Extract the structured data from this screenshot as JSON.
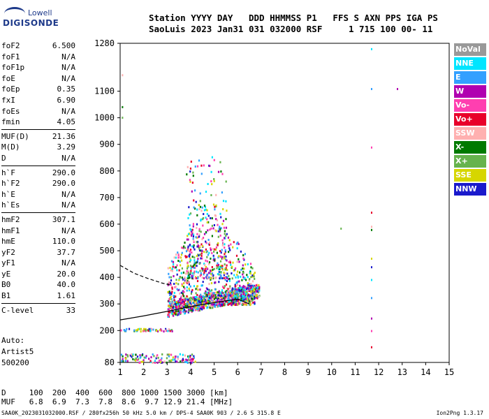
{
  "logo": {
    "line1": "Lowell",
    "line2": "DIGISONDE"
  },
  "header": {
    "line1": "Station YYYY DAY   DDD HHMMSS P1   FFS S AXN PPS IGA PS",
    "line2": "SaoLuis 2023 Jan31 031 032000 RSF     1 715 100 00- 11"
  },
  "params": [
    [
      {
        "k": "foF2",
        "v": "6.500"
      },
      {
        "k": "foF1",
        "v": "N/A"
      },
      {
        "k": "foF1p",
        "v": "N/A"
      },
      {
        "k": "foE",
        "v": "N/A"
      },
      {
        "k": "foEp",
        "v": "0.35"
      },
      {
        "k": "fxI",
        "v": "6.90"
      },
      {
        "k": "foEs",
        "v": "N/A"
      },
      {
        "k": "fmin",
        "v": "4.05"
      }
    ],
    [
      {
        "k": "MUF(D)",
        "v": "21.36"
      },
      {
        "k": "M(D)",
        "v": "3.29"
      },
      {
        "k": "D",
        "v": "N/A"
      }
    ],
    [
      {
        "k": "h`F",
        "v": "290.0"
      },
      {
        "k": "h`F2",
        "v": "290.0"
      },
      {
        "k": "h`E",
        "v": "N/A"
      },
      {
        "k": "h`Es",
        "v": "N/A"
      }
    ],
    [
      {
        "k": "hmF2",
        "v": "307.1"
      },
      {
        "k": "hmF1",
        "v": "N/A"
      },
      {
        "k": "hmE",
        "v": "110.0"
      },
      {
        "k": "yF2",
        "v": "37.7"
      },
      {
        "k": "yF1",
        "v": "N/A"
      },
      {
        "k": "yE",
        "v": "20.0"
      },
      {
        "k": "B0",
        "v": "40.0"
      },
      {
        "k": "B1",
        "v": "1.61"
      }
    ],
    [
      {
        "k": "C-level",
        "v": "33"
      }
    ]
  ],
  "artist": {
    "l1": "Auto:",
    "l2": "Artist5",
    "l3": "500200"
  },
  "legend": [
    {
      "label": "NoVal",
      "color": "#999999"
    },
    {
      "label": "NNE",
      "color": "#00e5ff"
    },
    {
      "label": "E",
      "color": "#33a0ff"
    },
    {
      "label": "W",
      "color": "#b000b0"
    },
    {
      "label": "Vo-",
      "color": "#ff3fb0"
    },
    {
      "label": "Vo+",
      "color": "#e8002a"
    },
    {
      "label": "SSW",
      "color": "#ffb0b0"
    },
    {
      "label": "X-",
      "color": "#007a00"
    },
    {
      "label": "X+",
      "color": "#66b34d"
    },
    {
      "label": "SSE",
      "color": "#d6d600"
    },
    {
      "label": "NNW",
      "color": "#1a1acc"
    }
  ],
  "muf": {
    "line1": "D     100  200  400  600  800 1000 1500 3000 [km]",
    "line2": "MUF   6.8  6.9  7.3  7.8  8.6  9.7 12.9 21.4 [MHz]"
  },
  "footer": {
    "left": "SAA0K_2023031032000.RSF / 280fx256h 50 kHz 5.0 km / DPS-4 SAA0K 903 / 2.6 S 315.8 E",
    "right": "Ion2Png 1.3.17"
  },
  "chart_data": {
    "type": "scatter",
    "xlim": [
      1,
      15
    ],
    "ylim": [
      80,
      1280
    ],
    "x_ticks": [
      1,
      2,
      3,
      4,
      5,
      6,
      7,
      8,
      9,
      10,
      11,
      12,
      13,
      14,
      15
    ],
    "y_ticks": [
      80,
      200,
      300,
      400,
      500,
      600,
      700,
      800,
      900,
      1000,
      1100,
      1280
    ],
    "grid": false,
    "legend_position": "right",
    "traces": [
      {
        "style": "solid",
        "x": [
          1.0,
          2.0,
          3.0,
          4.0,
          5.0,
          6.0,
          6.5
        ],
        "y": [
          240,
          255,
          272,
          290,
          305,
          318,
          300
        ]
      },
      {
        "style": "dashed",
        "x": [
          1.0,
          1.6,
          2.2,
          2.8,
          3.2
        ],
        "y": [
          445,
          415,
          395,
          378,
          370
        ]
      }
    ],
    "point_clusters": [
      {
        "name": "F-trace",
        "x": [
          3.0,
          6.9
        ],
        "y": [
          255,
          370
        ]
      },
      {
        "name": "F-spread",
        "x": [
          3.0,
          6.7
        ],
        "y": [
          300,
          700
        ]
      },
      {
        "name": "F-high",
        "x": [
          3.8,
          5.5
        ],
        "y": [
          400,
          860
        ]
      },
      {
        "name": "low-E",
        "x": [
          1.0,
          3.2
        ],
        "y": [
          200,
          210
        ]
      },
      {
        "name": "E-echo",
        "x": [
          1.0,
          4.2
        ],
        "y": [
          82,
          115
        ]
      }
    ],
    "isolated_points": [
      {
        "x": 11.7,
        "y": 1258
      },
      {
        "x": 11.7,
        "y": 1108
      },
      {
        "x": 12.8,
        "y": 1108
      },
      {
        "x": 11.7,
        "y": 888
      },
      {
        "x": 11.7,
        "y": 643
      },
      {
        "x": 11.7,
        "y": 590
      },
      {
        "x": 11.7,
        "y": 578
      },
      {
        "x": 10.4,
        "y": 583
      },
      {
        "x": 11.7,
        "y": 470
      },
      {
        "x": 11.7,
        "y": 438
      },
      {
        "x": 11.7,
        "y": 390
      },
      {
        "x": 11.7,
        "y": 322
      },
      {
        "x": 11.7,
        "y": 245
      },
      {
        "x": 11.7,
        "y": 198
      },
      {
        "x": 11.7,
        "y": 137
      },
      {
        "x": 1.1,
        "y": 1160
      },
      {
        "x": 1.1,
        "y": 1040
      },
      {
        "x": 1.1,
        "y": 1000
      }
    ]
  }
}
